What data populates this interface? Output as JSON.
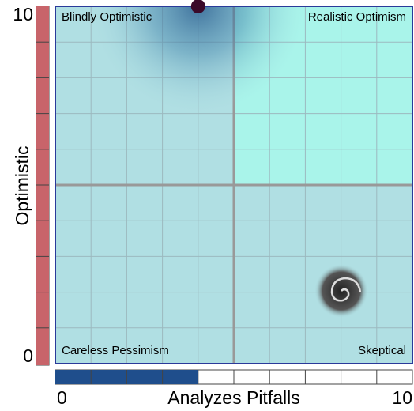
{
  "chart_data": {
    "type": "quadrant",
    "x_label": "Analyzes Pitfalls",
    "y_label": "Optimistic",
    "xlim": [
      0,
      10
    ],
    "ylim": [
      0,
      10
    ],
    "xticks": [
      0,
      10
    ],
    "yticks": [
      0,
      10
    ],
    "quadrants": {
      "top_left": "Blindly Optimistic",
      "top_right": "Realistic Optimism",
      "bottom_left": "Careless Pessimism",
      "bottom_right": "Skeptical"
    },
    "point": {
      "x": 4,
      "y": 10
    },
    "x_bar_color": "#1f4e8c",
    "y_bar_color": "#c8646a",
    "dot_color": "#3a0a2a"
  }
}
